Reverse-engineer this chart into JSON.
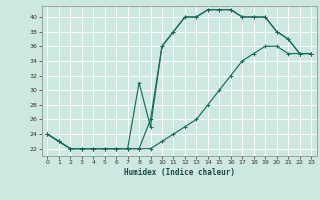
{
  "xlabel": "Humidex (Indice chaleur)",
  "bg_color": "#cce8e0",
  "grid_color": "#ffffff",
  "line_color": "#1a6b5a",
  "xlim": [
    -0.5,
    23.5
  ],
  "ylim": [
    21.0,
    41.5
  ],
  "xticks": [
    0,
    1,
    2,
    3,
    4,
    5,
    6,
    7,
    8,
    9,
    10,
    11,
    12,
    13,
    14,
    15,
    16,
    17,
    18,
    19,
    20,
    21,
    22,
    23
  ],
  "yticks": [
    22,
    24,
    26,
    28,
    30,
    32,
    34,
    36,
    38,
    40
  ],
  "line1_x": [
    0,
    1,
    2,
    3,
    4,
    5,
    6,
    7,
    8,
    9,
    10,
    11,
    12,
    13,
    14,
    15,
    16,
    17,
    18,
    19,
    20,
    21,
    22,
    23
  ],
  "line1_y": [
    24,
    23,
    22,
    22,
    22,
    22,
    22,
    22,
    22,
    22,
    23,
    24,
    25,
    26,
    28,
    30,
    32,
    34,
    35,
    36,
    36,
    35,
    35,
    35
  ],
  "line2_x": [
    0,
    1,
    2,
    3,
    4,
    5,
    6,
    7,
    8,
    9,
    10,
    11,
    12,
    13,
    14,
    15,
    16,
    17,
    18,
    19,
    20,
    21,
    22,
    23
  ],
  "line2_y": [
    24,
    23,
    22,
    22,
    22,
    22,
    22,
    22,
    22,
    26,
    36,
    38,
    40,
    40,
    41,
    41,
    41,
    40,
    40,
    40,
    38,
    37,
    35,
    35
  ],
  "line3_x": [
    0,
    1,
    2,
    3,
    4,
    5,
    6,
    7,
    8,
    9,
    10,
    11,
    12,
    13,
    14,
    15,
    16,
    17,
    18,
    19,
    20,
    21,
    22,
    23
  ],
  "line3_y": [
    24,
    23,
    22,
    22,
    22,
    22,
    22,
    22,
    31,
    25,
    36,
    38,
    40,
    40,
    41,
    41,
    41,
    40,
    40,
    40,
    38,
    37,
    35,
    35
  ]
}
